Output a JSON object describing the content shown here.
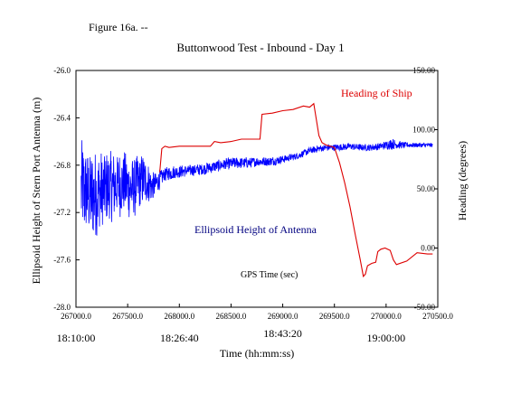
{
  "figure_label": "Figure 16a. --",
  "chart_data": {
    "type": "line",
    "title": "Buttonwood Test - Inbound - Day 1",
    "xlabel_inner": "GPS Time (sec)",
    "xlabel_time": "Time (hh:mm:ss)",
    "ylabel_left": "Ellipsoid Height of Stern Port Antenna (m)",
    "ylabel_right": "Heading (degrees)",
    "xlim": [
      267000,
      270500
    ],
    "ylim_left": [
      -28.0,
      -26.0
    ],
    "ylim_right": [
      -50,
      150
    ],
    "x_ticks": [
      "267000.0",
      "267500.0",
      "268000.0",
      "268500.0",
      "269000.0",
      "269500.0",
      "270000.0",
      "270500.0"
    ],
    "x_tick_values": [
      267000,
      267500,
      268000,
      268500,
      269000,
      269500,
      270000,
      270500
    ],
    "y_left_ticks": [
      "-26.0",
      "-26.4",
      "-26.8",
      "-27.2",
      "-27.6",
      "-28.0"
    ],
    "y_left_tick_values": [
      -26.0,
      -26.4,
      -26.8,
      -27.2,
      -27.6,
      -28.0
    ],
    "y_right_ticks": [
      "150.00",
      "100.00",
      "50.00",
      "0.00",
      "-50.00"
    ],
    "y_right_tick_values": [
      150,
      100,
      50,
      0,
      -50
    ],
    "time_ticks": [
      {
        "label": "18:10:00",
        "x": 267000
      },
      {
        "label": "18:26:40",
        "x": 268000
      },
      {
        "label": "18:43:20",
        "x": 269000
      },
      {
        "label": "19:00:00",
        "x": 270000
      }
    ],
    "grid": false,
    "series": [
      {
        "name": "Ellipsoid Height of Antenna",
        "color": "#0000ff",
        "axis": "left",
        "x": [
          267050,
          267150,
          267250,
          267350,
          267450,
          267550,
          267650,
          267750,
          267850,
          267950,
          268050,
          268150,
          268250,
          268350,
          268450,
          268550,
          268650,
          268750,
          268850,
          268950,
          269050,
          269150,
          269250,
          269350,
          269450,
          269550,
          269650,
          269750,
          269850,
          269950,
          270050,
          270150,
          270250,
          270350,
          270450
        ],
        "y": [
          -27.0,
          -27.05,
          -27.02,
          -26.98,
          -26.95,
          -27.0,
          -26.92,
          -26.98,
          -26.88,
          -26.86,
          -26.85,
          -26.84,
          -26.83,
          -26.81,
          -26.79,
          -26.78,
          -26.78,
          -26.77,
          -26.77,
          -26.76,
          -26.74,
          -26.72,
          -26.68,
          -26.66,
          -26.65,
          -26.65,
          -26.64,
          -26.65,
          -26.65,
          -26.64,
          -26.62,
          -26.63,
          -26.63,
          -26.63,
          -26.63
        ],
        "noise_amplitude": [
          0.42,
          0.38,
          0.35,
          0.3,
          0.28,
          0.27,
          0.22,
          0.12,
          0.06,
          0.06,
          0.05,
          0.05,
          0.05,
          0.05,
          0.05,
          0.05,
          0.05,
          0.04,
          0.04,
          0.04,
          0.03,
          0.03,
          0.03,
          0.03,
          0.03,
          0.03,
          0.03,
          0.03,
          0.03,
          0.03,
          0.05,
          0.03,
          0.02,
          0.02,
          0.02
        ]
      },
      {
        "name": "Heading of Ship",
        "color": "#dd0000",
        "axis": "right",
        "x": [
          267810,
          267830,
          267860,
          267900,
          268000,
          268100,
          268200,
          268300,
          268340,
          268400,
          268500,
          268600,
          268700,
          268780,
          268800,
          268900,
          269000,
          269100,
          269200,
          269260,
          269300,
          269350,
          269380,
          269420,
          269500,
          269550,
          269600,
          269650,
          269700,
          269750,
          269780,
          269800,
          269820,
          269860,
          269900,
          269920,
          269950,
          269990,
          270040,
          270070,
          270100,
          270200,
          270300,
          270400,
          270450
        ],
        "y": [
          64,
          84,
          86,
          85,
          86,
          86,
          86,
          86,
          90,
          89,
          90,
          92,
          92,
          92,
          113,
          114,
          116,
          117,
          120,
          119,
          122,
          95,
          89,
          87,
          85,
          72,
          55,
          35,
          12,
          -10,
          -24,
          -22,
          -15,
          -13,
          -12,
          -3,
          -1,
          0,
          -2,
          -10,
          -14,
          -11,
          -4,
          -5,
          -5
        ]
      }
    ],
    "annotations": [
      {
        "text": "Heading of Ship",
        "series": "Heading of Ship"
      },
      {
        "text": "Ellipsoid Height of Antenna",
        "series": "Ellipsoid Height of Antenna"
      }
    ]
  }
}
